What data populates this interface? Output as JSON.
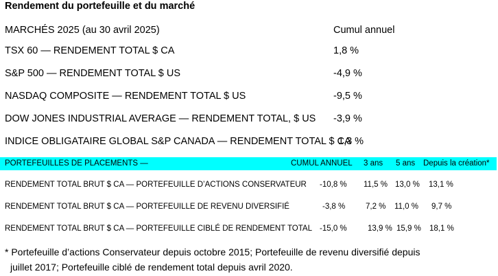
{
  "title": "Rendement du portefeuille et du marché",
  "markets": {
    "header_label": "MARCHÉS 2025 (au 30 avril 2025)",
    "header_value": "Cumul annuel",
    "rows": [
      {
        "label": "TSX 60 — RENDEMENT TOTAL $ CA",
        "value": "1,8 %"
      },
      {
        "label": "S&P 500 — RENDEMENT TOTAL  $ US",
        "value": "-4,9 %"
      },
      {
        "label": "NASDAQ COMPOSITE — RENDEMENT TOTAL  $ US",
        "value": "-9,5 %"
      },
      {
        "label": "DOW JONES INDUSTRIAL AVERAGE — RENDEMENT TOTAL, $ US",
        "value": "-3,9 %"
      },
      {
        "label": "INDICE OBLIGATAIRE GLOBAL S&P CANADA — RENDEMENT TOTAL  $ CA",
        "value": "1,3 %"
      }
    ]
  },
  "portfolios": {
    "header": {
      "label": "PORTEFEUILLES DE PLACEMENTS —",
      "ytd": "CUMUL ANNUEL",
      "y3": "3 ans",
      "y5": "5 ans",
      "since": "Depuis la création*"
    },
    "highlight_color": "#00ffff",
    "rows": [
      {
        "label": "RENDEMENT TOTAL BRUT  $ CA — PORTEFEUILLE D’ACTIONS CONSERVATEUR",
        "ytd": "-10,8 %",
        "y3": "11,5 %",
        "y5": "13,0 %",
        "since": "13,1 %"
      },
      {
        "label": "RENDEMENT TOTAL BRUT  $ CA — PORTEFEUILLE DE REVENU DIVERSIFIÉ",
        "ytd": "-3,8 %",
        "y3": "7,2 %",
        "y5": "11,0 %",
        "since": "9,7 %"
      },
      {
        "label": "RENDEMENT TOTAL BRUT   $ CA — PORTEFEUILLE CIBLÉ DE RENDEMENT TOTAL",
        "ytd": "-15,0 %",
        "y3": "13,9 %",
        "y5": "15,9 %",
        "since": "18,1 %"
      }
    ]
  },
  "footnote": {
    "line1": "* Portefeuille d’actions Conservateur depuis octobre 2015; Portefeuille de revenu diversifié depuis",
    "line2": "juillet 2017; Portefeuille ciblé de rendement total depuis avril 2020."
  }
}
